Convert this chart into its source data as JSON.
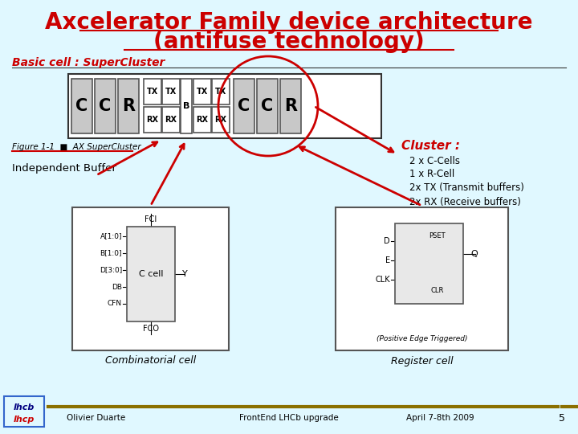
{
  "title_line1": "Axcelerator Family device architecture",
  "title_line2": "(antifuse technology)",
  "title_color": "#CC0000",
  "title_fontsize": 20,
  "bg_color": "#E0F8FF",
  "section_label": "Basic cell : SuperCluster",
  "cluster_label": "Cluster :",
  "cluster_items": [
    "2 x C-Cells",
    "1 x R-Cell",
    "2x TX (Transmit buffers)",
    "2x RX (Receive buffers)"
  ],
  "ind_buffer_label": "Independent Buffer",
  "figure_caption": "Figure 1-1  ■  AX SuperCluster",
  "comb_label": "Combinatorial cell",
  "reg_label": "Register cell",
  "footer_left": "Olivier Duarte",
  "footer_mid": "FrontEnd LHCb upgrade",
  "footer_date": "April 7-8th 2009",
  "footer_page": "5",
  "footer_bar_color": "#8B7000",
  "arrow_color": "#CC0000",
  "box_fill": "#D0D0D0",
  "box_outline": "#333333"
}
